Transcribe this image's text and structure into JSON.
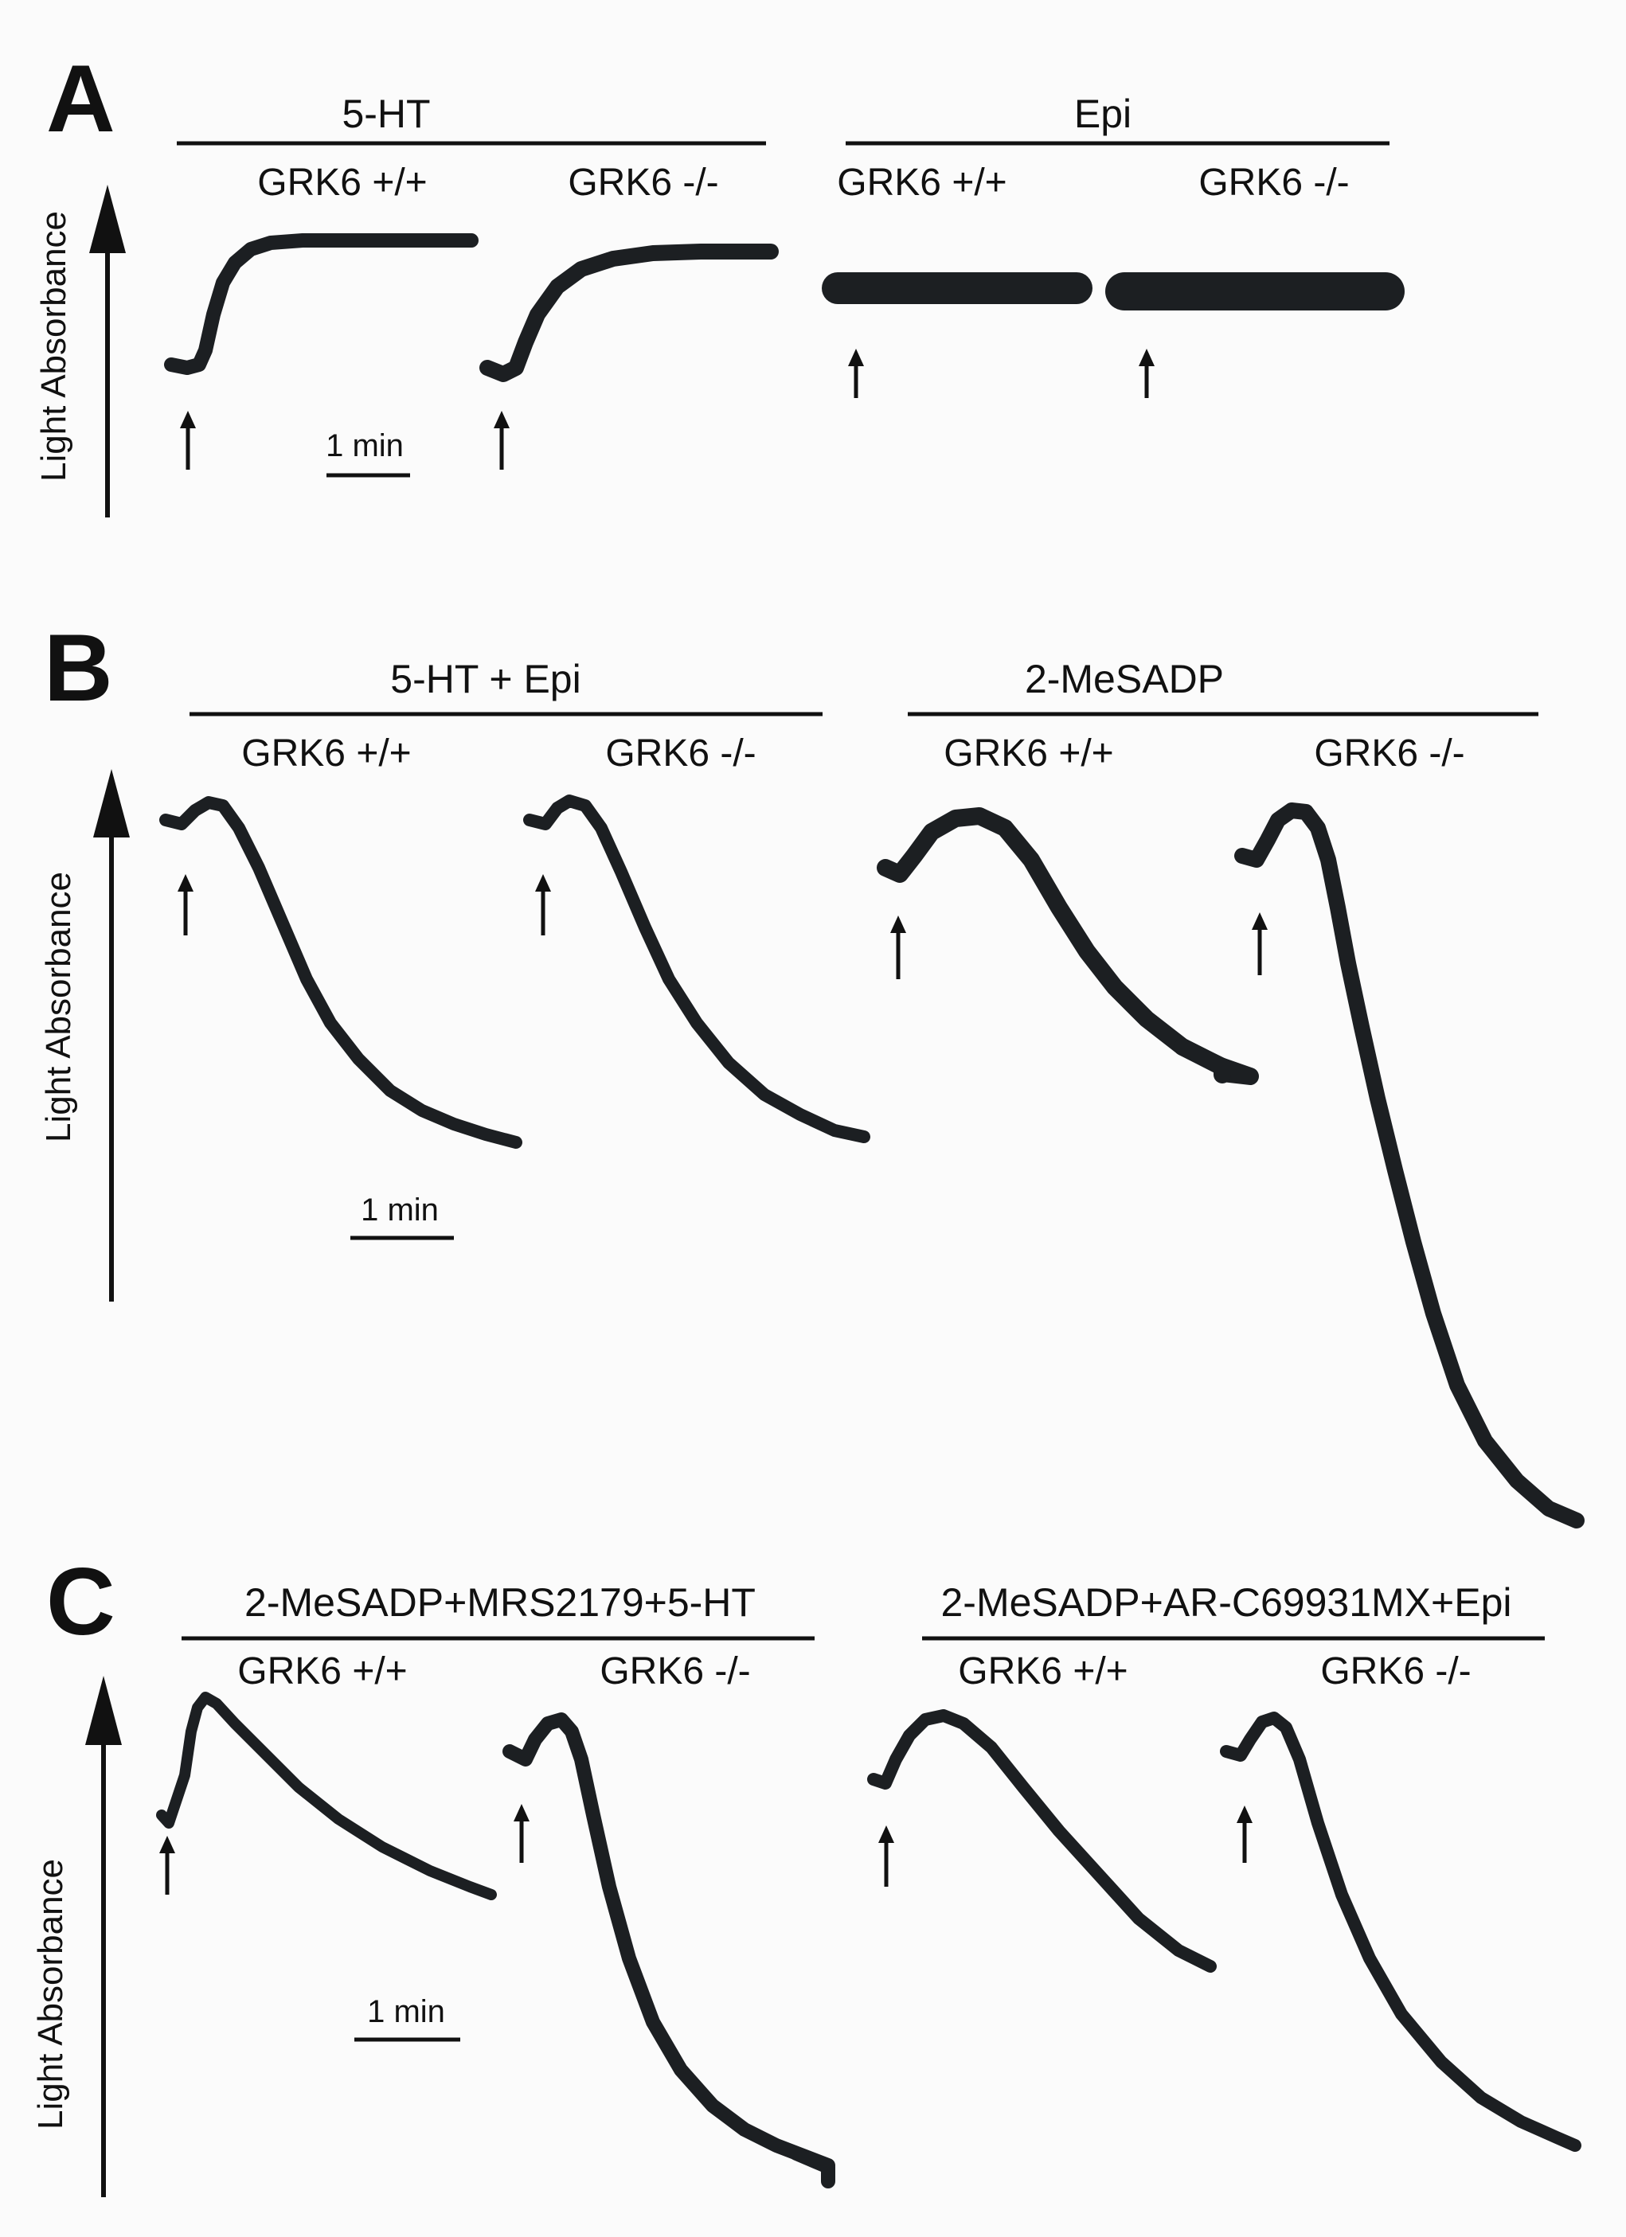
{
  "y_axis_label": "Light Absorbance",
  "scale_bar_label": "1 min",
  "panels": [
    {
      "letter": "A",
      "groups": [
        {
          "condition": "5-HT",
          "traces": [
            {
              "genotype": "GRK6 +/+",
              "response": "shape_change_sustained"
            },
            {
              "genotype": "GRK6 -/-",
              "response": "shape_change_sustained"
            }
          ]
        },
        {
          "condition": "Epi",
          "traces": [
            {
              "genotype": "GRK6 +/+",
              "response": "flat"
            },
            {
              "genotype": "GRK6 -/-",
              "response": "flat"
            }
          ]
        }
      ]
    },
    {
      "letter": "B",
      "groups": [
        {
          "condition": "5-HT + Epi",
          "traces": [
            {
              "genotype": "GRK6 +/+",
              "response": "aggregation"
            },
            {
              "genotype": "GRK6 -/-",
              "response": "aggregation"
            }
          ]
        },
        {
          "condition": "2-MeSADP",
          "traces": [
            {
              "genotype": "GRK6 +/+",
              "response": "aggregation"
            },
            {
              "genotype": "GRK6 -/-",
              "response": "aggregation_enhanced"
            }
          ]
        }
      ]
    },
    {
      "letter": "C",
      "groups": [
        {
          "condition": "2-MeSADP+MRS2179+5-HT",
          "traces": [
            {
              "genotype": "GRK6 +/+",
              "response": "aggregation"
            },
            {
              "genotype": "GRK6 -/-",
              "response": "aggregation_enhanced"
            }
          ]
        },
        {
          "condition": "2-MeSADP+AR-C69931MX+Epi",
          "traces": [
            {
              "genotype": "GRK6 +/+",
              "response": "aggregation"
            },
            {
              "genotype": "GRK6 -/-",
              "response": "aggregation_enhanced"
            }
          ]
        }
      ]
    }
  ],
  "colors": {
    "trace": "#1c1f22",
    "ink": "#111111",
    "background": "#fbfbfb"
  }
}
